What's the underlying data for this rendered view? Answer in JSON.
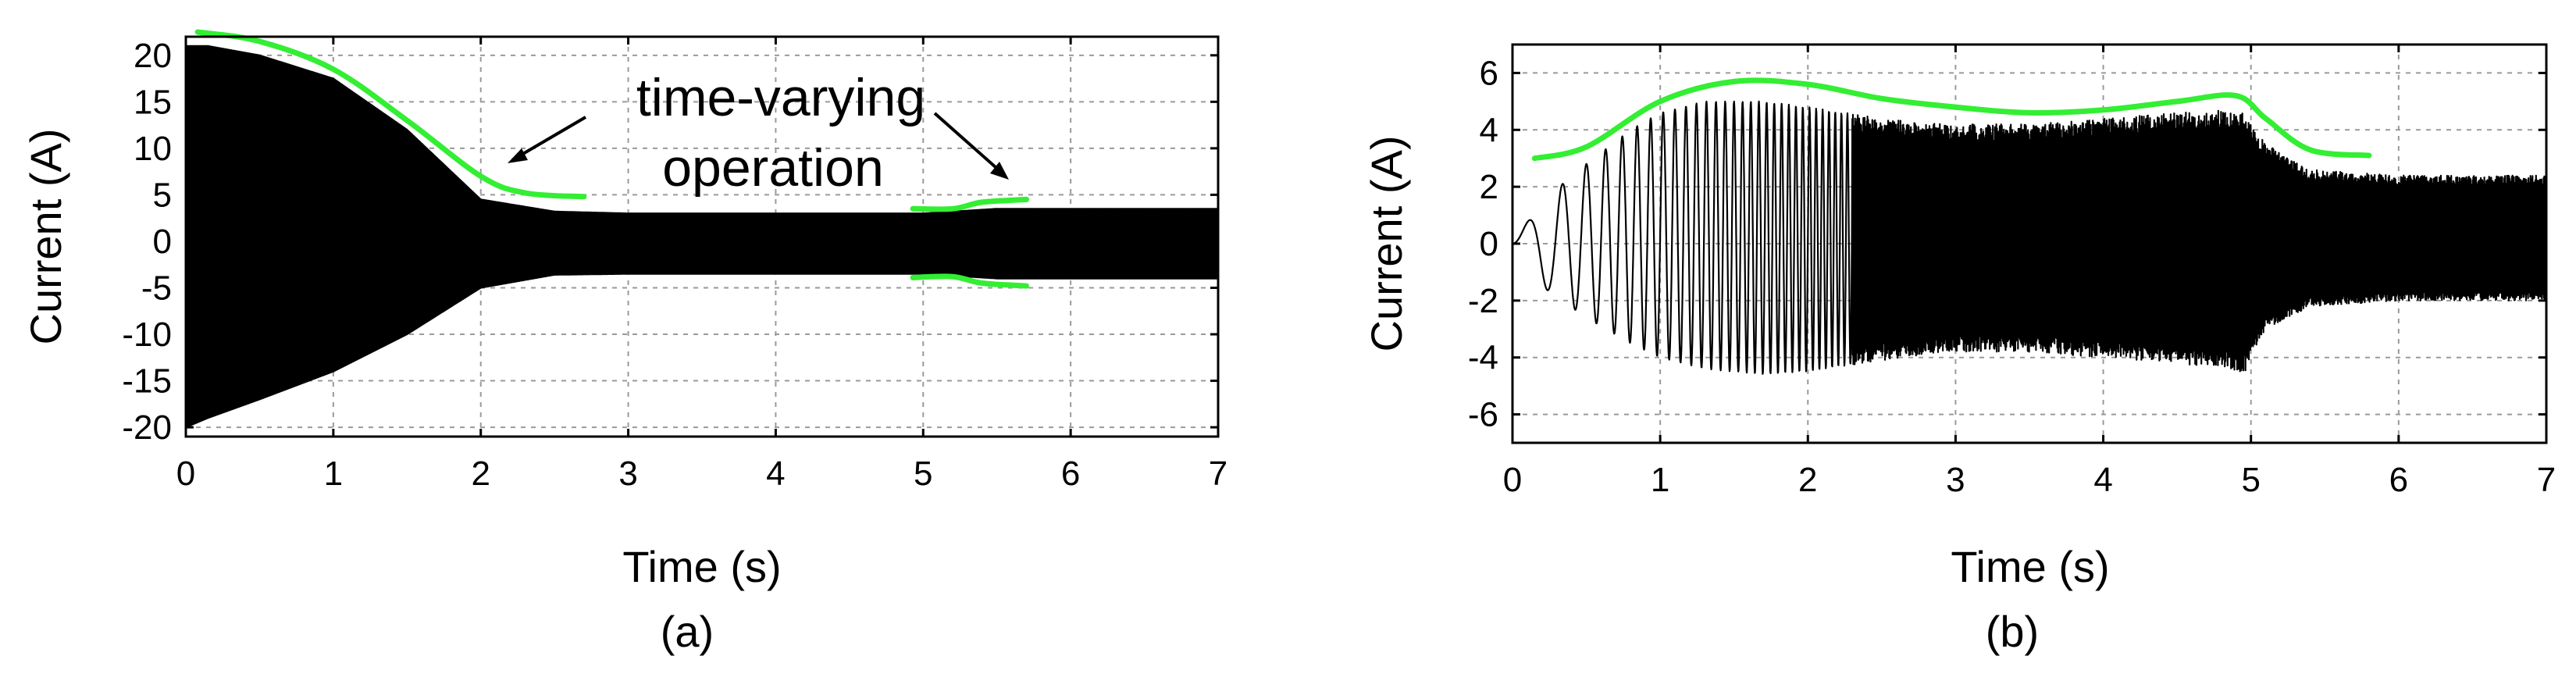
{
  "colors": {
    "envelope": "#33ee33",
    "signal": "#000000",
    "grid": "#9a9a9a"
  },
  "chart_data": [
    {
      "type": "line",
      "caption": "(a)",
      "xlabel": "Time (s)",
      "ylabel": "Current (A)",
      "xlim": [
        0,
        7
      ],
      "ylim": [
        -21,
        22
      ],
      "xticks": [
        0,
        1,
        2,
        3,
        4,
        5,
        6,
        7
      ],
      "yticks": [
        -20,
        -15,
        -10,
        -5,
        0,
        5,
        10,
        15,
        20
      ],
      "grid": true,
      "annotation": {
        "lines": [
          "time-varying",
          "operation"
        ]
      },
      "signal": {
        "t": [
          0,
          0.15,
          0.5,
          1.0,
          1.5,
          2.0,
          2.5,
          3.0,
          4.0,
          5.0,
          5.3,
          5.5,
          6.0,
          7.0
        ],
        "upper": [
          21,
          21,
          20,
          17.5,
          12,
          4.5,
          3.2,
          3.0,
          3.0,
          3.0,
          3.3,
          3.5,
          3.5,
          3.5
        ],
        "lower": [
          -20,
          -19,
          -17,
          -14,
          -10,
          -5,
          -3.6,
          -3.5,
          -3.5,
          -3.5,
          -3.8,
          -4.0,
          -4.0,
          -4.0
        ]
      },
      "envelopes": [
        {
          "x": [
            0.08,
            0.5,
            1.0,
            1.5,
            2.0,
            2.3,
            2.7
          ],
          "y": [
            22.5,
            21.5,
            18.5,
            13,
            7,
            5.2,
            4.8
          ]
        },
        {
          "x": [
            4.93,
            5.2,
            5.4,
            5.7
          ],
          "y": [
            3.5,
            3.5,
            4.2,
            4.5
          ]
        },
        {
          "x": [
            4.93,
            5.2,
            5.4,
            5.7
          ],
          "y": [
            -3.9,
            -3.8,
            -4.5,
            -4.8
          ]
        }
      ]
    },
    {
      "type": "line",
      "caption": "(b)",
      "xlabel": "Time (s)",
      "ylabel": "Current (A)",
      "xlim": [
        0,
        7
      ],
      "ylim": [
        -7,
        7
      ],
      "xticks": [
        0,
        1,
        2,
        3,
        4,
        5,
        6,
        7
      ],
      "yticks": [
        -6,
        -4,
        -2,
        0,
        2,
        4,
        6
      ],
      "grid": true,
      "signal": {
        "t": [
          0,
          0.2,
          0.5,
          0.8,
          1.0,
          1.3,
          1.7,
          2.0,
          2.5,
          3.0,
          3.5,
          4.0,
          4.5,
          4.8,
          4.95,
          5.1,
          5.4,
          6.0,
          7.0
        ],
        "upper": [
          0,
          1.5,
          2.8,
          4.0,
          4.6,
          5.0,
          5.0,
          4.8,
          4.4,
          4.2,
          4.2,
          4.4,
          4.6,
          4.7,
          4.6,
          3.5,
          2.6,
          2.4,
          2.4
        ],
        "lower": [
          0,
          -1.5,
          -2.6,
          -3.5,
          -4.0,
          -4.4,
          -4.6,
          -4.5,
          -4.1,
          -3.8,
          -3.8,
          -4.0,
          -4.2,
          -4.4,
          -4.6,
          -3.0,
          -2.2,
          -2.0,
          -2.0
        ]
      },
      "envelopes": [
        {
          "x": [
            0.15,
            0.5,
            1.0,
            1.5,
            2.0,
            2.5,
            3.0,
            3.5,
            4.0,
            4.5,
            4.9,
            5.1,
            5.4,
            5.8
          ],
          "y": [
            3.0,
            3.4,
            5.0,
            5.7,
            5.6,
            5.1,
            4.8,
            4.6,
            4.7,
            5.0,
            5.2,
            4.4,
            3.3,
            3.1
          ]
        }
      ]
    }
  ]
}
